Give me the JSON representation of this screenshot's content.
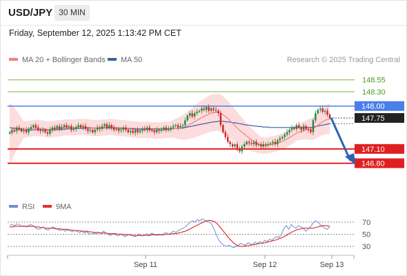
{
  "header": {
    "symbol": "USD/JPY",
    "timeframe": "30 MIN",
    "datetime": "Friday, September 12, 2025 1:13:42 PM CET"
  },
  "legend": {
    "ma20": "MA 20 + Bollinger Bands",
    "ma50": "MA 50",
    "credit": "Research © 2025 Trading Central"
  },
  "rsi_legend": {
    "rsi": "RSI",
    "ma9": "9MA"
  },
  "colors": {
    "up_candle": "#1e8a3a",
    "down_candle": "#cc2222",
    "resistance": "#7ab648",
    "pivot": "#4a7ee8",
    "support": "#e02020",
    "bollinger": "#fbd6d6",
    "ma20": "#f08080",
    "ma50": "#3a5fa8",
    "rsi": "#6b8fd8",
    "ma9": "#e03030",
    "arrow": "#2b63b5"
  },
  "chart_data": [
    {
      "type": "candlestick",
      "title": "",
      "x_labels": [
        "Sep 11",
        "Sep 12",
        "Sep 13"
      ],
      "ylim": [
        146.2,
        148.85
      ],
      "levels": [
        {
          "label": "148.55",
          "value": 148.55,
          "kind": "resistance"
        },
        {
          "label": "148.30",
          "value": 148.3,
          "kind": "resistance"
        },
        {
          "label": "148.00",
          "value": 148.0,
          "kind": "pivot"
        },
        {
          "label": "147.75",
          "value": 147.75,
          "kind": "last"
        },
        {
          "label": "147.10",
          "value": 147.1,
          "kind": "support"
        },
        {
          "label": "146.80",
          "value": 146.8,
          "kind": "support"
        }
      ],
      "close": [
        147.45,
        147.5,
        147.48,
        147.55,
        147.52,
        147.47,
        147.5,
        147.45,
        147.52,
        147.56,
        147.6,
        147.55,
        147.5,
        147.48,
        147.5,
        147.45,
        147.42,
        147.5,
        147.55,
        147.52,
        147.58,
        147.52,
        147.56,
        147.6,
        147.55,
        147.58,
        147.5,
        147.52,
        147.56,
        147.6,
        147.55,
        147.58,
        147.52,
        147.48,
        147.5,
        147.45,
        147.5,
        147.55,
        147.52,
        147.58,
        147.62,
        147.55,
        147.6,
        147.55,
        147.5,
        147.52,
        147.48,
        147.5,
        147.55,
        147.5,
        147.45,
        147.48,
        147.44,
        147.5,
        147.45,
        147.48,
        147.52,
        147.5,
        147.55,
        147.5,
        147.48,
        147.45,
        147.5,
        147.48,
        147.5,
        147.55,
        147.5,
        147.52,
        147.55,
        147.58,
        147.6,
        147.55,
        147.58,
        147.6,
        147.7,
        147.8,
        147.85,
        147.78,
        147.85,
        147.88,
        147.9,
        147.95,
        147.92,
        147.98,
        147.9,
        147.95,
        147.92,
        147.9,
        147.85,
        147.6,
        147.45,
        147.35,
        147.25,
        147.2,
        147.15,
        147.2,
        147.1,
        147.05,
        147.15,
        147.2,
        147.25,
        147.22,
        147.2,
        147.25,
        147.18,
        147.2,
        147.15,
        147.2,
        147.18,
        147.2,
        147.22,
        147.25,
        147.2,
        147.28,
        147.32,
        147.35,
        147.4,
        147.45,
        147.5,
        147.55,
        147.52,
        147.6,
        147.55,
        147.5,
        147.58,
        147.52,
        147.5,
        147.45,
        147.7,
        147.85,
        147.92,
        147.95,
        147.88,
        147.9,
        147.82,
        147.75
      ],
      "ma20": [
        147.42,
        147.45,
        147.47,
        147.49,
        147.5,
        147.5,
        147.51,
        147.51,
        147.52,
        147.53,
        147.54,
        147.54,
        147.54,
        147.53,
        147.53,
        147.52,
        147.51,
        147.51,
        147.52,
        147.52,
        147.53,
        147.53,
        147.54,
        147.55,
        147.55,
        147.55,
        147.55,
        147.55,
        147.55,
        147.56,
        147.56,
        147.56,
        147.56,
        147.55,
        147.55,
        147.54,
        147.54,
        147.54,
        147.54,
        147.55,
        147.55,
        147.55,
        147.56,
        147.56,
        147.55,
        147.55,
        147.54,
        147.54,
        147.54,
        147.53,
        147.52,
        147.52,
        147.51,
        147.51,
        147.5,
        147.5,
        147.5,
        147.5,
        147.5,
        147.5,
        147.49,
        147.49,
        147.49,
        147.49,
        147.49,
        147.5,
        147.5,
        147.5,
        147.51,
        147.52,
        147.53,
        147.53,
        147.54,
        147.55,
        147.57,
        147.59,
        147.62,
        147.64,
        147.67,
        147.7,
        147.73,
        147.76,
        147.78,
        147.81,
        147.83,
        147.85,
        147.86,
        147.87,
        147.87,
        147.85,
        147.82,
        147.78,
        147.74,
        147.69,
        147.64,
        147.59,
        147.54,
        147.49,
        147.45,
        147.41,
        147.37,
        147.33,
        147.29,
        147.26,
        147.23,
        147.2,
        147.18,
        147.17,
        147.17,
        147.18,
        147.19,
        147.2,
        147.21,
        147.22,
        147.24,
        147.26,
        147.28,
        147.31,
        147.34,
        147.37,
        147.4,
        147.43,
        147.45,
        147.47,
        147.49,
        147.5,
        147.51,
        147.51,
        147.53,
        147.56,
        147.6,
        147.64,
        147.67,
        147.7,
        147.72,
        147.73
      ],
      "ma50": [
        147.55,
        147.54,
        147.53,
        147.53,
        147.52,
        147.52,
        147.51,
        147.51,
        147.5,
        147.5,
        147.5,
        147.5,
        147.5,
        147.5,
        147.5,
        147.5,
        147.5,
        147.5,
        147.5,
        147.5,
        147.5,
        147.51,
        147.51,
        147.51,
        147.52,
        147.52,
        147.52,
        147.52,
        147.53,
        147.53,
        147.53,
        147.53,
        147.54,
        147.54,
        147.54,
        147.54,
        147.54,
        147.54,
        147.54,
        147.54,
        147.54,
        147.54,
        147.54,
        147.54,
        147.54,
        147.54,
        147.53,
        147.53,
        147.53,
        147.53,
        147.53,
        147.53,
        147.53,
        147.52,
        147.52,
        147.52,
        147.52,
        147.52,
        147.52,
        147.52,
        147.52,
        147.52,
        147.52,
        147.52,
        147.52,
        147.52,
        147.52,
        147.52,
        147.52,
        147.53,
        147.53,
        147.53,
        147.54,
        147.54,
        147.55,
        147.56,
        147.57,
        147.58,
        147.59,
        147.6,
        147.61,
        147.62,
        147.63,
        147.64,
        147.65,
        147.66,
        147.67,
        147.67,
        147.68,
        147.68,
        147.68,
        147.67,
        147.67,
        147.66,
        147.65,
        147.65,
        147.64,
        147.63,
        147.62,
        147.61,
        147.6,
        147.6,
        147.59,
        147.58,
        147.58,
        147.57,
        147.57,
        147.56,
        147.56,
        147.56,
        147.55,
        147.55,
        147.55,
        147.55,
        147.55,
        147.55,
        147.55,
        147.55,
        147.55,
        147.55,
        147.55,
        147.55,
        147.55,
        147.55,
        147.55,
        147.55,
        147.55,
        147.55,
        147.56,
        147.57,
        147.58,
        147.59,
        147.6,
        147.61,
        147.62,
        147.63
      ]
    },
    {
      "type": "line",
      "title": "",
      "ylim": [
        20,
        80
      ],
      "y_ticks": [
        "70",
        "50",
        "30"
      ],
      "series": [
        {
          "name": "RSI",
          "values": [
            65,
            66,
            64,
            67,
            66,
            63,
            64,
            62,
            65,
            66,
            63,
            60,
            58,
            60,
            62,
            58,
            57,
            60,
            62,
            60,
            58,
            56,
            58,
            55,
            57,
            56,
            54,
            56,
            55,
            53,
            55,
            52,
            54,
            51,
            50,
            52,
            50,
            53,
            51,
            55,
            52,
            50,
            48,
            51,
            49,
            47,
            50,
            48,
            46,
            49,
            50,
            48,
            46,
            48,
            50,
            47,
            49,
            51,
            48,
            52,
            50,
            48,
            50,
            49,
            51,
            53,
            50,
            52,
            55,
            53,
            56,
            58,
            60,
            62,
            66,
            70,
            72,
            70,
            74,
            72,
            75,
            73,
            72,
            70,
            66,
            58,
            48,
            40,
            35,
            32,
            30,
            32,
            30,
            28,
            30,
            32,
            35,
            33,
            32,
            36,
            34,
            33,
            37,
            35,
            38,
            36,
            40,
            38,
            42,
            40,
            44,
            46,
            45,
            50,
            60,
            64,
            58,
            66,
            62,
            60,
            64,
            62,
            60,
            55,
            58,
            62,
            68,
            72,
            70,
            66,
            63,
            60,
            58,
            62
          ]
        },
        {
          "name": "9MA",
          "values": [
            62,
            62,
            63,
            63,
            63,
            63,
            63,
            63,
            63,
            63,
            63,
            62,
            62,
            61,
            61,
            60,
            60,
            60,
            60,
            59,
            59,
            59,
            58,
            58,
            58,
            57,
            57,
            56,
            56,
            56,
            55,
            55,
            55,
            54,
            54,
            53,
            53,
            53,
            52,
            52,
            52,
            51,
            51,
            51,
            51,
            50,
            50,
            50,
            49,
            49,
            49,
            48,
            48,
            48,
            48,
            48,
            48,
            48,
            48,
            49,
            49,
            49,
            49,
            49,
            49,
            50,
            50,
            50,
            51,
            51,
            52,
            53,
            54,
            55,
            57,
            59,
            61,
            63,
            65,
            67,
            69,
            71,
            72,
            73,
            72,
            71,
            68,
            64,
            59,
            54,
            49,
            44,
            40,
            36,
            33,
            31,
            30,
            30,
            31,
            31,
            32,
            33,
            33,
            34,
            35,
            35,
            36,
            37,
            38,
            39,
            40,
            41,
            43,
            44,
            46,
            48,
            51,
            53,
            55,
            57,
            58,
            59,
            60,
            60,
            60,
            60,
            60,
            61,
            62,
            63,
            64,
            64,
            64,
            63
          ]
        }
      ]
    }
  ]
}
